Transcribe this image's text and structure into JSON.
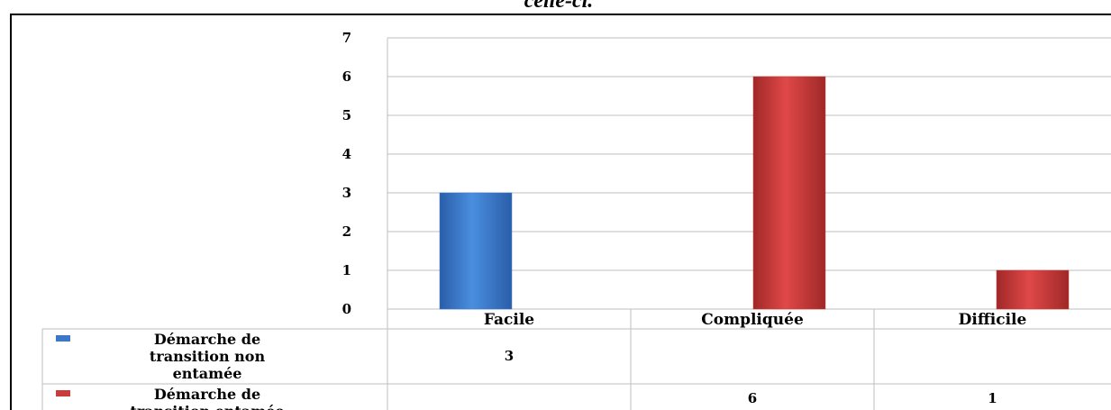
{
  "caption": "celle-ci.",
  "colors": {
    "series1": "#3c78c8",
    "series2": "#c83c3c",
    "grid": "#bfbfbf"
  },
  "chart_data": {
    "type": "bar",
    "categories": [
      "Facile",
      "Compliquée",
      "Difficile"
    ],
    "series": [
      {
        "name": "Démarche de transition non entamée",
        "values": [
          3,
          null,
          null
        ]
      },
      {
        "name": "Démarche de transition entamée",
        "values": [
          null,
          6,
          1
        ]
      }
    ],
    "y_ticks": [
      "0",
      "1",
      "2",
      "3",
      "4",
      "5",
      "6",
      "7"
    ],
    "ylim": [
      0,
      7
    ],
    "grid": true,
    "legend": "data-table-below",
    "table": [
      {
        "legend_lines": [
          "Démarche de",
          "transition non",
          "entamée"
        ],
        "cells": [
          "3",
          "",
          ""
        ]
      },
      {
        "legend_lines": [
          "Démarche de",
          "transition entamée"
        ],
        "cells": [
          "",
          "6",
          "1"
        ]
      }
    ]
  }
}
